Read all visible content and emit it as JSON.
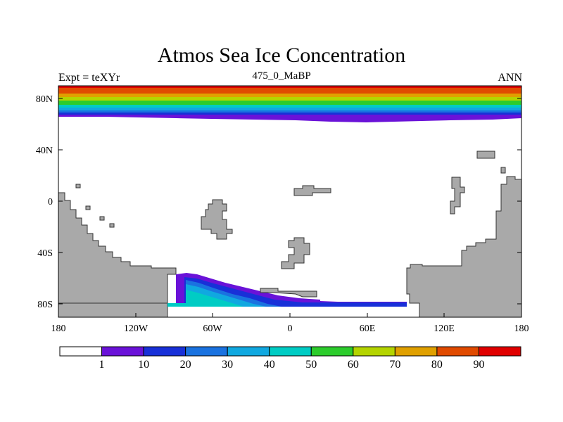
{
  "title": "Atmos Sea Ice Concentration",
  "subtitle_left": "Expt = teXYr",
  "subtitle_center": "475_0_MaBP",
  "subtitle_right": "ANN",
  "chart_data": {
    "type": "heatmap",
    "variable": "Atmos Sea Ice Concentration",
    "x_ticks": [
      "180",
      "120W",
      "60W",
      "0",
      "60E",
      "120E",
      "180"
    ],
    "y_ticks": [
      "80N",
      "40N",
      "0",
      "40S",
      "80S"
    ],
    "xlim": [
      -180,
      180
    ],
    "ylim": [
      -90,
      90
    ],
    "colorbar": {
      "boundaries": [
        "1",
        "10",
        "20",
        "30",
        "40",
        "50",
        "60",
        "70",
        "80",
        "90"
      ],
      "colors": [
        "#ffffff",
        "#6a12d8",
        "#1830d8",
        "#1a72e0",
        "#10a8e0",
        "#00ccc4",
        "#2ccc2c",
        "#b4d400",
        "#e0a000",
        "#e04a00",
        "#e00000"
      ]
    },
    "land_color": "#a9a9a9",
    "regions": {
      "north_polar_band": "sea ice from ~65N to 90N, increasing poleward",
      "south_ice_margin": "sea ice along 65S-80S between ~90W and ~90E"
    }
  }
}
